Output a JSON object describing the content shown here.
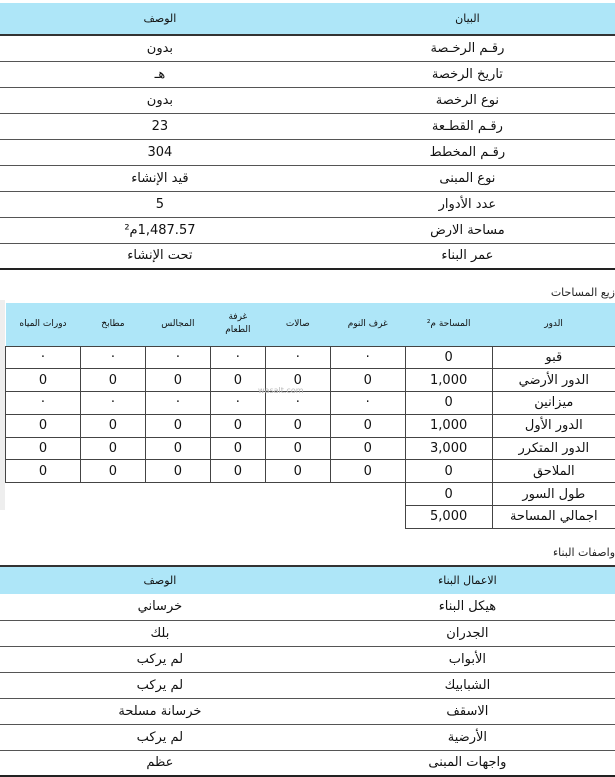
{
  "license_table": {
    "headers": [
      "البيان",
      "الوصف"
    ],
    "rows": [
      [
        "رقـم الرخـصة",
        "بدون"
      ],
      [
        "تاريخ الرخصة",
        "هـ"
      ],
      [
        "نوع الرخصة",
        "بدون"
      ],
      [
        "رقـم القطـعة",
        "23"
      ],
      [
        "رقـم المخطط",
        "304"
      ],
      [
        "نوع المبنى",
        "قيد الإنشاء"
      ],
      [
        "عدد الأدوار",
        "5"
      ],
      [
        "مساحة الارض",
        "1,487.57م²"
      ],
      [
        "عمر البناء",
        "تحت الإنشاء"
      ]
    ]
  },
  "areas_section_title": "زيع المساحات",
  "areas_table": {
    "headers": [
      "الدور",
      "المساحة م²",
      "غرف النوم",
      "صالات",
      "غرفة الطعام",
      "المجالس",
      "مطابخ",
      "دورات المياه"
    ],
    "rows": [
      [
        "قبو",
        "0",
        "·",
        "·",
        "·",
        "·",
        "·",
        "·"
      ],
      [
        "الدور الأرضي",
        "1,000",
        "0",
        "0",
        "0",
        "0",
        "0",
        "0"
      ],
      [
        "ميزانين",
        "0",
        "·",
        "·",
        "·",
        "·",
        "·",
        "·"
      ],
      [
        "الدور الأول",
        "1,000",
        "0",
        "0",
        "0",
        "0",
        "0",
        "0"
      ],
      [
        "الدور المتكرر",
        "3,000",
        "0",
        "0",
        "0",
        "0",
        "0",
        "0"
      ],
      [
        "الملاحق",
        "0",
        "0",
        "0",
        "0",
        "0",
        "0",
        "0"
      ]
    ],
    "summary": [
      [
        "طول السور",
        "0"
      ],
      [
        "اجمالي المساحة",
        "5,000"
      ]
    ]
  },
  "watermark": "wasalt.com",
  "specs_section_title": "واصفات البناء",
  "specs_table": {
    "headers": [
      "الاعمال البناء",
      "الوصف"
    ],
    "rows": [
      [
        "هيكل البناء",
        "خرساني"
      ],
      [
        "الجدران",
        "بلك"
      ],
      [
        "الأبواب",
        "لم يركب"
      ],
      [
        "الشبابيك",
        "لم يركب"
      ],
      [
        "الاسقف",
        "خرسانة مسلحة"
      ],
      [
        "الأرضية",
        "لم يركب"
      ],
      [
        "واجهات المبنى",
        "عظم"
      ]
    ]
  }
}
